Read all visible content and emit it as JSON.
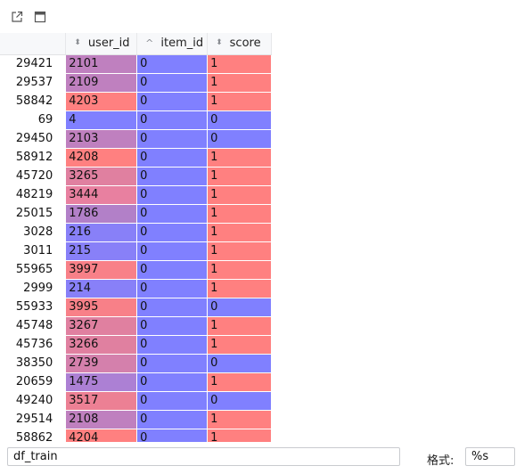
{
  "toolbar": {
    "open_in_new_icon": "external-link-icon",
    "window_icon": "window-icon"
  },
  "columns": [
    {
      "label": "user_id",
      "sort": "unsorted"
    },
    {
      "label": "item_id",
      "sort": "ascending"
    },
    {
      "label": "score",
      "sort": "unsorted"
    }
  ],
  "colors": {
    "blue": "#8080ff",
    "red": "#ff8080"
  },
  "rows": [
    {
      "index": "29421",
      "user_id": "2101",
      "item_id": "0",
      "score": "1",
      "user_color": "#bf80bf",
      "item_color": "#8080ff",
      "score_color": "#ff8080"
    },
    {
      "index": "29537",
      "user_id": "2109",
      "item_id": "0",
      "score": "1",
      "user_color": "#bf80bf",
      "item_color": "#8080ff",
      "score_color": "#ff8080"
    },
    {
      "index": "58842",
      "user_id": "4203",
      "item_id": "0",
      "score": "1",
      "user_color": "#ff8080",
      "item_color": "#8080ff",
      "score_color": "#ff8080"
    },
    {
      "index": "69",
      "user_id": "4",
      "item_id": "0",
      "score": "0",
      "user_color": "#8080ff",
      "item_color": "#8080ff",
      "score_color": "#8080ff"
    },
    {
      "index": "29450",
      "user_id": "2103",
      "item_id": "0",
      "score": "0",
      "user_color": "#bf80bf",
      "item_color": "#8080ff",
      "score_color": "#8080ff"
    },
    {
      "index": "58912",
      "user_id": "4208",
      "item_id": "0",
      "score": "1",
      "user_color": "#ff8080",
      "item_color": "#8080ff",
      "score_color": "#ff8080"
    },
    {
      "index": "45720",
      "user_id": "3265",
      "item_id": "0",
      "score": "1",
      "user_color": "#e080a0",
      "item_color": "#8080ff",
      "score_color": "#ff8080"
    },
    {
      "index": "48219",
      "user_id": "3444",
      "item_id": "0",
      "score": "1",
      "user_color": "#e880a0",
      "item_color": "#8080ff",
      "score_color": "#ff8080"
    },
    {
      "index": "25015",
      "user_id": "1786",
      "item_id": "0",
      "score": "1",
      "user_color": "#b280c8",
      "item_color": "#8080ff",
      "score_color": "#ff8080"
    },
    {
      "index": "3028",
      "user_id": "216",
      "item_id": "0",
      "score": "1",
      "user_color": "#8880f8",
      "item_color": "#8080ff",
      "score_color": "#ff8080"
    },
    {
      "index": "3011",
      "user_id": "215",
      "item_id": "0",
      "score": "1",
      "user_color": "#8880f8",
      "item_color": "#8080ff",
      "score_color": "#ff8080"
    },
    {
      "index": "55965",
      "user_id": "3997",
      "item_id": "0",
      "score": "1",
      "user_color": "#f88088",
      "item_color": "#8080ff",
      "score_color": "#ff8080"
    },
    {
      "index": "2999",
      "user_id": "214",
      "item_id": "0",
      "score": "1",
      "user_color": "#8880f8",
      "item_color": "#8080ff",
      "score_color": "#ff8080"
    },
    {
      "index": "55933",
      "user_id": "3995",
      "item_id": "0",
      "score": "0",
      "user_color": "#f88088",
      "item_color": "#8080ff",
      "score_color": "#8080ff"
    },
    {
      "index": "45748",
      "user_id": "3267",
      "item_id": "0",
      "score": "1",
      "user_color": "#e080a0",
      "item_color": "#8080ff",
      "score_color": "#ff8080"
    },
    {
      "index": "45736",
      "user_id": "3266",
      "item_id": "0",
      "score": "1",
      "user_color": "#e080a0",
      "item_color": "#8080ff",
      "score_color": "#ff8080"
    },
    {
      "index": "38350",
      "user_id": "2739",
      "item_id": "0",
      "score": "0",
      "user_color": "#d480ac",
      "item_color": "#8080ff",
      "score_color": "#8080ff"
    },
    {
      "index": "20659",
      "user_id": "1475",
      "item_id": "0",
      "score": "1",
      "user_color": "#ac80d4",
      "item_color": "#8080ff",
      "score_color": "#ff8080"
    },
    {
      "index": "49240",
      "user_id": "3517",
      "item_id": "0",
      "score": "0",
      "user_color": "#ec8094",
      "item_color": "#8080ff",
      "score_color": "#8080ff"
    },
    {
      "index": "29514",
      "user_id": "2108",
      "item_id": "0",
      "score": "1",
      "user_color": "#bf80bf",
      "item_color": "#8080ff",
      "score_color": "#ff8080"
    },
    {
      "index": "58862",
      "user_id": "4204",
      "item_id": "0",
      "score": "1",
      "user_color": "#ff8080",
      "item_color": "#8080ff",
      "score_color": "#ff8080"
    }
  ],
  "footer": {
    "variable_name": "df_train",
    "format_label": "格式:",
    "format_value": "%s"
  }
}
